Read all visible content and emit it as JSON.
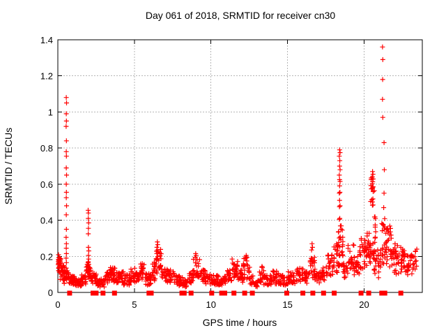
{
  "window": {
    "background": "#ffffff"
  },
  "chart_data": {
    "type": "scatter",
    "title": "Day 061 of 2018, SRMTID for receiver cn30",
    "xlabel": "GPS time / hours",
    "ylabel": "SRMTID / TECUs",
    "xlim": [
      0,
      23.8
    ],
    "ylim": [
      0,
      1.4
    ],
    "xticks": [
      0,
      5,
      10,
      15,
      20
    ],
    "yticks": [
      0,
      0.2,
      0.4,
      0.6,
      0.8,
      1.0,
      1.2,
      1.4
    ],
    "grid": true,
    "grid_style": "dashed",
    "grid_color": "#b5b5b5",
    "axis_color": "#000000",
    "marker": "plus",
    "marker_color": "#ff0000",
    "zero_marker": "filled-square",
    "legend": "none",
    "outlier_points": [
      [
        0.55,
        1.08
      ],
      [
        0.57,
        1.05
      ],
      [
        0.55,
        0.99
      ],
      [
        0.56,
        0.95
      ],
      [
        0.54,
        0.92
      ],
      [
        0.56,
        0.84
      ],
      [
        0.55,
        0.78
      ],
      [
        0.56,
        0.755
      ],
      [
        0.55,
        0.69
      ],
      [
        0.57,
        0.65
      ],
      [
        0.55,
        0.6
      ],
      [
        0.56,
        0.555
      ],
      [
        0.55,
        0.525
      ],
      [
        0.57,
        0.48
      ],
      [
        0.55,
        0.43
      ],
      [
        0.56,
        0.35
      ],
      [
        0.54,
        0.305
      ],
      [
        0.56,
        0.27
      ],
      [
        0.55,
        0.245
      ],
      [
        0.56,
        0.215
      ],
      [
        0.54,
        0.19
      ],
      [
        0.56,
        0.165
      ],
      [
        0.55,
        0.135
      ],
      [
        1.98,
        0.455
      ],
      [
        2.0,
        0.44
      ],
      [
        1.99,
        0.41
      ],
      [
        2.01,
        0.385
      ],
      [
        2.0,
        0.355
      ],
      [
        1.99,
        0.325
      ],
      [
        2.0,
        0.25
      ],
      [
        2.02,
        0.23
      ],
      [
        2.0,
        0.205
      ],
      [
        2.01,
        0.185
      ],
      [
        1.99,
        0.17
      ],
      [
        2.02,
        0.155
      ],
      [
        2.0,
        0.14
      ],
      [
        2.01,
        0.125
      ],
      [
        6.5,
        0.28
      ],
      [
        6.52,
        0.265
      ],
      [
        6.47,
        0.25
      ],
      [
        6.5,
        0.235
      ],
      [
        6.54,
        0.225
      ],
      [
        6.46,
        0.215
      ],
      [
        9.0,
        0.215
      ],
      [
        9.03,
        0.205
      ],
      [
        8.97,
        0.195
      ],
      [
        12.3,
        0.205
      ],
      [
        12.35,
        0.195
      ],
      [
        16.6,
        0.27
      ],
      [
        16.63,
        0.25
      ],
      [
        16.57,
        0.235
      ],
      [
        18.4,
        0.79
      ],
      [
        18.43,
        0.775
      ],
      [
        18.38,
        0.755
      ],
      [
        18.41,
        0.73
      ],
      [
        18.4,
        0.7
      ],
      [
        18.43,
        0.68
      ],
      [
        18.38,
        0.65
      ],
      [
        18.4,
        0.625
      ],
      [
        18.43,
        0.615
      ],
      [
        18.4,
        0.59
      ],
      [
        18.42,
        0.555
      ],
      [
        18.38,
        0.55
      ],
      [
        18.4,
        0.51
      ],
      [
        18.43,
        0.48
      ],
      [
        18.39,
        0.475
      ],
      [
        18.41,
        0.41
      ],
      [
        18.38,
        0.405
      ],
      [
        20.55,
        0.67
      ],
      [
        20.58,
        0.655
      ],
      [
        20.54,
        0.64
      ],
      [
        21.2,
        1.36
      ],
      [
        21.22,
        1.29
      ],
      [
        21.21,
        1.18
      ],
      [
        21.2,
        1.07
      ],
      [
        21.22,
        0.97
      ],
      [
        21.3,
        0.83
      ],
      [
        21.32,
        0.68
      ],
      [
        21.3,
        0.55
      ],
      [
        21.28,
        0.47
      ]
    ],
    "band_segments": [
      [
        0.02,
        0.1,
        0.15,
        0.21,
        10
      ],
      [
        0.02,
        0.25,
        0.11,
        0.19,
        22
      ],
      [
        0.15,
        0.45,
        0.07,
        0.15,
        26
      ],
      [
        0.35,
        0.75,
        0.05,
        0.12,
        28
      ],
      [
        0.75,
        1.15,
        0.035,
        0.09,
        30
      ],
      [
        1.15,
        1.55,
        0.035,
        0.075,
        32
      ],
      [
        1.55,
        1.85,
        0.045,
        0.1,
        16
      ],
      [
        1.85,
        2.15,
        0.07,
        0.17,
        26
      ],
      [
        2.15,
        2.55,
        0.045,
        0.11,
        24
      ],
      [
        2.55,
        3.1,
        0.03,
        0.075,
        36
      ],
      [
        3.1,
        3.4,
        0.05,
        0.115,
        18
      ],
      [
        3.4,
        3.8,
        0.055,
        0.14,
        28
      ],
      [
        3.8,
        4.3,
        0.05,
        0.115,
        32
      ],
      [
        4.3,
        4.75,
        0.04,
        0.1,
        28
      ],
      [
        4.75,
        5.1,
        0.055,
        0.145,
        20
      ],
      [
        5.1,
        5.4,
        0.05,
        0.115,
        18
      ],
      [
        5.4,
        5.7,
        0.065,
        0.16,
        18
      ],
      [
        5.7,
        6.1,
        0.04,
        0.105,
        26
      ],
      [
        6.1,
        6.45,
        0.065,
        0.17,
        20
      ],
      [
        6.4,
        6.75,
        0.1,
        0.25,
        24
      ],
      [
        6.75,
        7.15,
        0.055,
        0.135,
        20
      ],
      [
        7.15,
        7.65,
        0.05,
        0.125,
        28
      ],
      [
        7.65,
        8.15,
        0.035,
        0.095,
        28
      ],
      [
        8.15,
        8.55,
        0.03,
        0.075,
        22
      ],
      [
        8.55,
        8.9,
        0.05,
        0.125,
        20
      ],
      [
        8.85,
        9.3,
        0.07,
        0.19,
        24
      ],
      [
        9.3,
        9.65,
        0.055,
        0.125,
        20
      ],
      [
        9.65,
        10.15,
        0.045,
        0.105,
        26
      ],
      [
        10.15,
        10.65,
        0.04,
        0.095,
        26
      ],
      [
        10.65,
        11.05,
        0.04,
        0.09,
        22
      ],
      [
        11.05,
        11.35,
        0.055,
        0.125,
        16
      ],
      [
        11.35,
        11.8,
        0.07,
        0.185,
        26
      ],
      [
        11.8,
        12.1,
        0.055,
        0.125,
        16
      ],
      [
        12.1,
        12.55,
        0.07,
        0.19,
        24
      ],
      [
        12.55,
        12.85,
        0.04,
        0.11,
        12
      ],
      [
        12.9,
        13.15,
        0.03,
        0.07,
        10
      ],
      [
        13.15,
        13.45,
        0.055,
        0.165,
        14
      ],
      [
        13.45,
        13.95,
        0.04,
        0.095,
        26
      ],
      [
        13.95,
        14.5,
        0.045,
        0.125,
        28
      ],
      [
        14.5,
        15.05,
        0.04,
        0.095,
        26
      ],
      [
        15.05,
        15.55,
        0.045,
        0.115,
        24
      ],
      [
        15.55,
        16.05,
        0.055,
        0.135,
        24
      ],
      [
        16.05,
        16.4,
        0.05,
        0.115,
        18
      ],
      [
        16.4,
        16.8,
        0.075,
        0.21,
        24
      ],
      [
        16.8,
        17.2,
        0.05,
        0.115,
        20
      ],
      [
        17.2,
        17.6,
        0.065,
        0.145,
        20
      ],
      [
        17.6,
        18.0,
        0.09,
        0.21,
        22
      ],
      [
        18.0,
        18.3,
        0.11,
        0.27,
        20
      ],
      [
        18.3,
        18.62,
        0.14,
        0.38,
        28
      ],
      [
        18.62,
        18.95,
        0.075,
        0.19,
        16
      ],
      [
        18.95,
        19.35,
        0.11,
        0.27,
        22
      ],
      [
        19.35,
        19.7,
        0.095,
        0.21,
        20
      ],
      [
        19.7,
        20.15,
        0.13,
        0.3,
        28
      ],
      [
        20.15,
        20.5,
        0.14,
        0.33,
        24
      ],
      [
        20.42,
        20.68,
        0.48,
        0.66,
        20
      ],
      [
        20.5,
        20.8,
        0.1,
        0.3,
        18
      ],
      [
        20.68,
        20.82,
        0.3,
        0.47,
        8
      ],
      [
        20.82,
        21.12,
        0.075,
        0.24,
        14
      ],
      [
        21.15,
        21.5,
        0.14,
        0.44,
        26
      ],
      [
        21.5,
        21.8,
        0.14,
        0.38,
        22
      ],
      [
        21.8,
        22.25,
        0.095,
        0.27,
        26
      ],
      [
        22.25,
        22.75,
        0.11,
        0.255,
        28
      ],
      [
        22.75,
        23.15,
        0.095,
        0.215,
        20
      ],
      [
        23.15,
        23.45,
        0.12,
        0.245,
        14
      ]
    ],
    "zero_marker_x": [
      0.77,
      2.3,
      2.5,
      2.95,
      3.7,
      5.95,
      6.1,
      8.1,
      8.25,
      8.7,
      10.05,
      10.7,
      10.9,
      11.5,
      12.2,
      12.7,
      14.95,
      16.0,
      16.65,
      17.35,
      18.05,
      19.8,
      20.3,
      21.15,
      21.35,
      22.4
    ]
  }
}
